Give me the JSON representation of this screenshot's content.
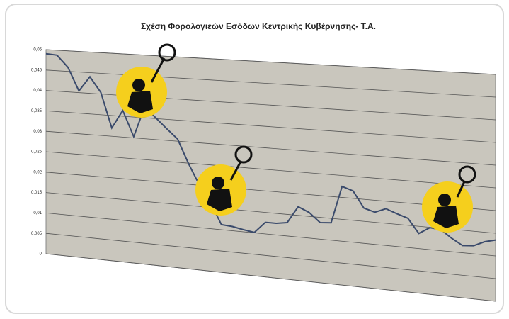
{
  "chart_data": {
    "type": "line",
    "title": "Σχέση Φορολογιεών Εσόδων Κεντρικής Κυβέρνησης- Τ.Α.",
    "series": [
      {
        "name": null,
        "color": "#3a4a6b",
        "values": [
          0.049,
          0.0488,
          0.046,
          0.0404,
          0.044,
          0.0404,
          0.032,
          0.0364,
          0.0303,
          0.0376,
          0.0352,
          0.0328,
          0.0305,
          0.0249,
          0.02,
          0.0161,
          0.0112,
          0.011,
          0.0105,
          0.0101,
          0.0127,
          0.0127,
          0.0131,
          0.017,
          0.0159,
          0.0138,
          0.014,
          0.0225,
          0.0217,
          0.018,
          0.0173,
          0.0183,
          0.0174,
          0.0166,
          0.0134,
          0.0149,
          0.0147,
          0.013,
          0.0116,
          0.0118,
          0.0129,
          0.0135
        ]
      }
    ],
    "ylim": [
      0,
      0.05
    ],
    "yticks": [
      0,
      {
        "value": 0.005,
        "label": "0,005"
      },
      {
        "value": 0.01,
        "label": "0,01"
      },
      {
        "value": 0.015,
        "label": "0,015"
      },
      {
        "value": 0.02,
        "label": "0,02"
      },
      {
        "value": 0.025,
        "label": "0,025"
      },
      {
        "value": 0.03,
        "label": "0,03"
      },
      {
        "value": 0.035,
        "label": "0,035"
      },
      {
        "value": 0.04,
        "label": "0,04"
      },
      {
        "value": 0.045,
        "label": "0,045"
      },
      {
        "value": 0.05,
        "label": "0,05"
      }
    ],
    "grid": true
  }
}
